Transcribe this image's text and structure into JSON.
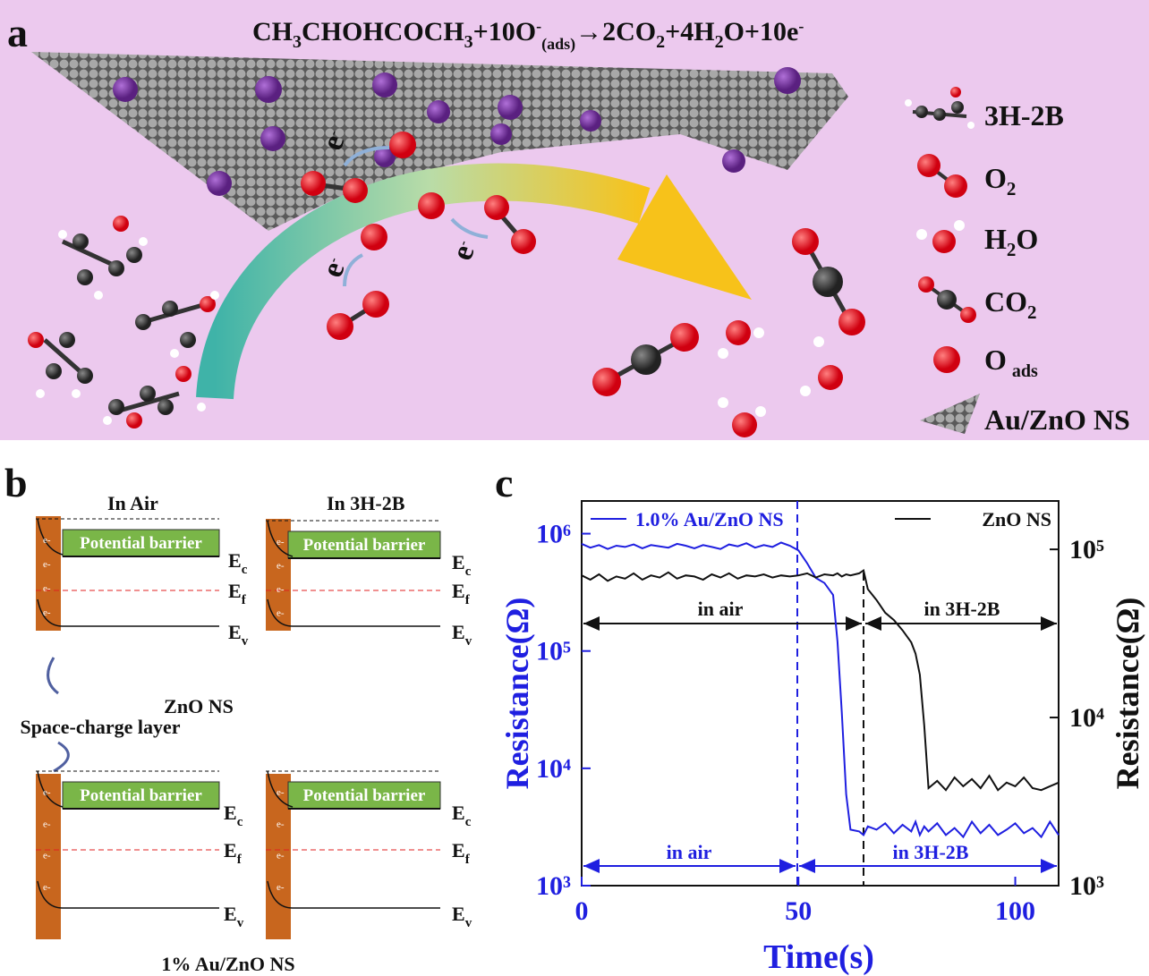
{
  "panel_a": {
    "label": "a",
    "equation": [
      "CH",
      "3",
      "CHOHCOCH",
      "3",
      "+10O",
      "-",
      "(ads)",
      "→2CO",
      "2",
      "+4H",
      "2",
      "O+10e",
      "-"
    ],
    "electron": [
      "e",
      "-"
    ],
    "legend": [
      [
        "3H-2B"
      ],
      [
        "O",
        "2"
      ],
      [
        "H",
        "2",
        "O"
      ],
      [
        "CO",
        "2"
      ],
      [
        "O",
        "ads"
      ],
      [
        "Au/ZnO NS"
      ]
    ]
  },
  "panel_b": {
    "label": "b",
    "in_air": "In Air",
    "in_gas": "In 3H-2B",
    "barrier": "Potential barrier",
    "level_symbol": "E",
    "level_subscripts": [
      "c",
      "f",
      "v"
    ],
    "electron": "e-",
    "zno": "ZnO NS",
    "space_charge": "Space-charge layer",
    "au_zno": "1% Au/ZnO NS"
  },
  "chart_data": {
    "type": "line",
    "label": "c",
    "xlabel": "Time(s)",
    "ylabel": "Resistance(Ω)",
    "y2label": "Resistance(Ω)",
    "log_y": true,
    "x": [
      0,
      2,
      4,
      6,
      8,
      10,
      12,
      14,
      16,
      18,
      20,
      22,
      24,
      26,
      28,
      30,
      32,
      34,
      36,
      38,
      40,
      42,
      44,
      46,
      48,
      50,
      52,
      54,
      56,
      58,
      59,
      60,
      61,
      62,
      64,
      65,
      66,
      68,
      70,
      72,
      74,
      76,
      77,
      78,
      79,
      80,
      82,
      84,
      86,
      88,
      90,
      92,
      94,
      96,
      98,
      100,
      102,
      104,
      106,
      108,
      110
    ],
    "xlim": [
      0,
      110
    ],
    "xticks": [
      0,
      50,
      100
    ],
    "ylim": [
      1000,
      1900000
    ],
    "yticks": [
      {
        "value": 1000,
        "label": "10³"
      },
      {
        "value": 10000,
        "label": "10⁴"
      },
      {
        "value": 100000,
        "label": "10⁵"
      },
      {
        "value": 1000000,
        "label": "10⁶"
      }
    ],
    "y2lim": [
      1000,
      194000
    ],
    "y2ticks": [
      {
        "value": 1000,
        "label": "10³"
      },
      {
        "value": 10000,
        "label": "10⁴"
      },
      {
        "value": 100000,
        "label": "10⁵"
      }
    ],
    "series": [
      {
        "name": "1.0% Au/ZnO NS",
        "color": "#1f1fe0",
        "values": [
          820000,
          760000,
          800000,
          740000,
          790000,
          770000,
          810000,
          750000,
          800000,
          780000,
          760000,
          820000,
          790000,
          750000,
          800000,
          770000,
          740000,
          810000,
          780000,
          830000,
          760000,
          800000,
          770000,
          840000,
          790000,
          720000,
          560000,
          420000,
          380000,
          300000,
          120000,
          30000,
          6000,
          3000,
          2900,
          2700,
          3200,
          3000,
          3400,
          2800,
          3300,
          2900,
          3500,
          2700,
          3200,
          2900,
          3400,
          2700,
          3100,
          2600,
          3500,
          2800,
          3300,
          2700,
          3000,
          3400,
          2800,
          3100,
          2600,
          3500,
          2700
        ]
      },
      {
        "name": "ZnO NS",
        "color": "#111111",
        "axis": "y2",
        "values": [
          70000,
          66000,
          71000,
          65000,
          69000,
          67000,
          72000,
          66000,
          70000,
          68000,
          73000,
          67000,
          70000,
          69000,
          66000,
          71000,
          68000,
          72000,
          67000,
          70000,
          69000,
          71000,
          68000,
          70000,
          69000,
          70000,
          72000,
          68000,
          71000,
          70000,
          72000,
          69000,
          71000,
          70000,
          72000,
          75000,
          58000,
          50000,
          42000,
          38000,
          33000,
          28000,
          24000,
          18000,
          9000,
          3800,
          4200,
          3700,
          4400,
          3900,
          4300,
          3800,
          4500,
          3700,
          4100,
          3900,
          4400,
          3800,
          3700,
          3900,
          4100
        ]
      }
    ],
    "annotations": [
      "in air",
      "in 3H-2B",
      "in air",
      "in 3H-2B"
    ]
  }
}
